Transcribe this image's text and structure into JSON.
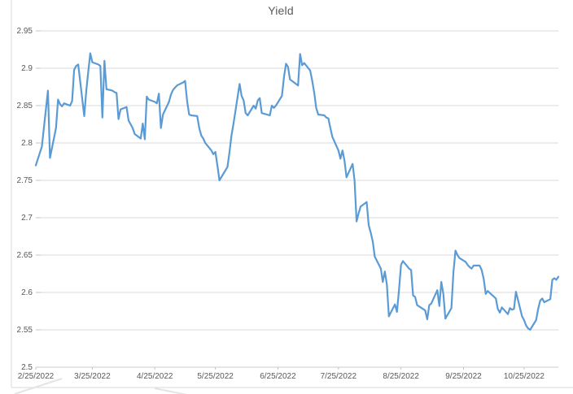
{
  "page": {
    "background": "#FFFFFF"
  },
  "chart": {
    "title": "Yield",
    "border_color": "#D9D9D9",
    "text_color": "#595959"
  },
  "colors": {
    "line": "#5B9BD5",
    "gridline": "#D9D9D9",
    "axis_line": "#CBCBCB",
    "tick": "#C3C3C3",
    "label_text": "#595959",
    "chart_border": "#D9D9D9",
    "watermark": "#E4E4E4"
  },
  "chart_data": {
    "type": "line",
    "title": "Yield",
    "legend": "none",
    "grid": "horizontal-major",
    "x_axis": {
      "type": "date",
      "year": 2022,
      "tick_labels": [
        "2/25/2022",
        "3/25/2022",
        "4/25/2022",
        "5/25/2022",
        "6/25/2022",
        "7/25/2022",
        "8/25/2022",
        "9/25/2022",
        "10/25/2022"
      ]
    },
    "y_axis": {
      "min": 2.5,
      "max": 2.95,
      "tick_step": 0.05,
      "tick_labels": [
        "2.5",
        "2.55",
        "2.6",
        "2.65",
        "2.7",
        "2.75",
        "2.8",
        "2.85",
        "2.9",
        "2.95"
      ]
    },
    "series": [
      {
        "name": "Yield",
        "color": "#5B9BD5",
        "dates": [
          "2/25",
          "2/28",
          "3/1",
          "3/2",
          "3/3",
          "3/4",
          "3/7",
          "3/8",
          "3/9",
          "3/10",
          "3/11",
          "3/14",
          "3/15",
          "3/16",
          "3/17",
          "3/18",
          "3/21",
          "3/22",
          "3/23",
          "3/24",
          "3/25",
          "3/28",
          "3/29",
          "3/30",
          "3/31",
          "4/1",
          "4/4",
          "4/5",
          "4/6",
          "4/7",
          "4/8",
          "4/11",
          "4/12",
          "4/13",
          "4/14",
          "4/15",
          "4/18",
          "4/19",
          "4/20",
          "4/21",
          "4/22",
          "4/25",
          "4/26",
          "4/27",
          "4/28",
          "4/29",
          "5/2",
          "5/3",
          "5/4",
          "5/5",
          "5/6",
          "5/9",
          "5/10",
          "5/11",
          "5/12",
          "5/13",
          "5/16",
          "5/17",
          "5/18",
          "5/19",
          "5/20",
          "5/23",
          "5/24",
          "5/25",
          "5/26",
          "5/27",
          "5/31",
          "6/1",
          "6/2",
          "6/3",
          "6/6",
          "6/7",
          "6/8",
          "6/9",
          "6/10",
          "6/13",
          "6/14",
          "6/15",
          "6/16",
          "6/17",
          "6/21",
          "6/22",
          "6/23",
          "6/24",
          "6/27",
          "6/28",
          "6/29",
          "6/30",
          "7/1",
          "7/5",
          "7/6",
          "7/7",
          "7/8",
          "7/11",
          "7/12",
          "7/13",
          "7/14",
          "7/15",
          "7/18",
          "7/19",
          "7/20",
          "7/21",
          "7/22",
          "7/25",
          "7/26",
          "7/27",
          "7/28",
          "7/29",
          "8/1",
          "8/2",
          "8/3",
          "8/4",
          "8/5",
          "8/8",
          "8/9",
          "8/10",
          "8/11",
          "8/12",
          "8/15",
          "8/16",
          "8/17",
          "8/18",
          "8/19",
          "8/22",
          "8/23",
          "8/24",
          "8/25",
          "8/26",
          "8/29",
          "8/30",
          "8/31",
          "9/1",
          "9/2",
          "9/6",
          "9/7",
          "9/8",
          "9/9",
          "9/12",
          "9/13",
          "9/14",
          "9/15",
          "9/16",
          "9/19",
          "9/20",
          "9/21",
          "9/22",
          "9/23",
          "9/26",
          "9/27",
          "9/28",
          "9/29",
          "9/30",
          "10/3",
          "10/4",
          "10/5",
          "10/6",
          "10/7",
          "10/11",
          "10/12",
          "10/13",
          "10/14",
          "10/17",
          "10/18",
          "10/19",
          "10/20",
          "10/21",
          "10/24",
          "10/25",
          "10/26",
          "10/27",
          "10/28",
          "10/31",
          "11/1",
          "11/2",
          "11/3",
          "11/4",
          "11/7",
          "11/8",
          "11/9",
          "11/10",
          "11/11"
        ],
        "values": [
          2.77,
          2.795,
          2.82,
          2.845,
          2.87,
          2.78,
          2.82,
          2.858,
          2.852,
          2.849,
          2.853,
          2.85,
          2.856,
          2.898,
          2.903,
          2.905,
          2.836,
          2.87,
          2.895,
          2.92,
          2.908,
          2.905,
          2.903,
          2.834,
          2.91,
          2.872,
          2.87,
          2.868,
          2.867,
          2.832,
          2.845,
          2.848,
          2.83,
          2.825,
          2.82,
          2.812,
          2.806,
          2.826,
          2.805,
          2.862,
          2.858,
          2.855,
          2.853,
          2.866,
          2.82,
          2.838,
          2.855,
          2.865,
          2.871,
          2.874,
          2.877,
          2.881,
          2.883,
          2.856,
          2.838,
          2.837,
          2.836,
          2.82,
          2.81,
          2.806,
          2.8,
          2.79,
          2.785,
          2.788,
          2.77,
          2.75,
          2.768,
          2.788,
          2.81,
          2.826,
          2.879,
          2.863,
          2.857,
          2.84,
          2.837,
          2.85,
          2.846,
          2.857,
          2.86,
          2.84,
          2.837,
          2.85,
          2.847,
          2.85,
          2.863,
          2.888,
          2.906,
          2.902,
          2.885,
          2.877,
          2.919,
          2.904,
          2.907,
          2.897,
          2.883,
          2.867,
          2.847,
          2.838,
          2.837,
          2.834,
          2.833,
          2.82,
          2.808,
          2.79,
          2.779,
          2.79,
          2.776,
          2.754,
          2.772,
          2.75,
          2.695,
          2.706,
          2.715,
          2.721,
          2.69,
          2.68,
          2.668,
          2.648,
          2.632,
          2.614,
          2.628,
          2.611,
          2.568,
          2.584,
          2.574,
          2.603,
          2.637,
          2.642,
          2.632,
          2.63,
          2.596,
          2.594,
          2.583,
          2.576,
          2.564,
          2.583,
          2.585,
          2.603,
          2.582,
          2.614,
          2.598,
          2.565,
          2.579,
          2.627,
          2.656,
          2.65,
          2.646,
          2.641,
          2.637,
          2.634,
          2.632,
          2.636,
          2.636,
          2.63,
          2.618,
          2.598,
          2.602,
          2.592,
          2.578,
          2.573,
          2.58,
          2.571,
          2.579,
          2.577,
          2.578,
          2.601,
          2.568,
          2.563,
          2.556,
          2.552,
          2.55,
          2.563,
          2.578,
          2.589,
          2.592,
          2.587,
          2.591,
          2.617,
          2.619,
          2.617,
          2.621
        ]
      }
    ]
  }
}
